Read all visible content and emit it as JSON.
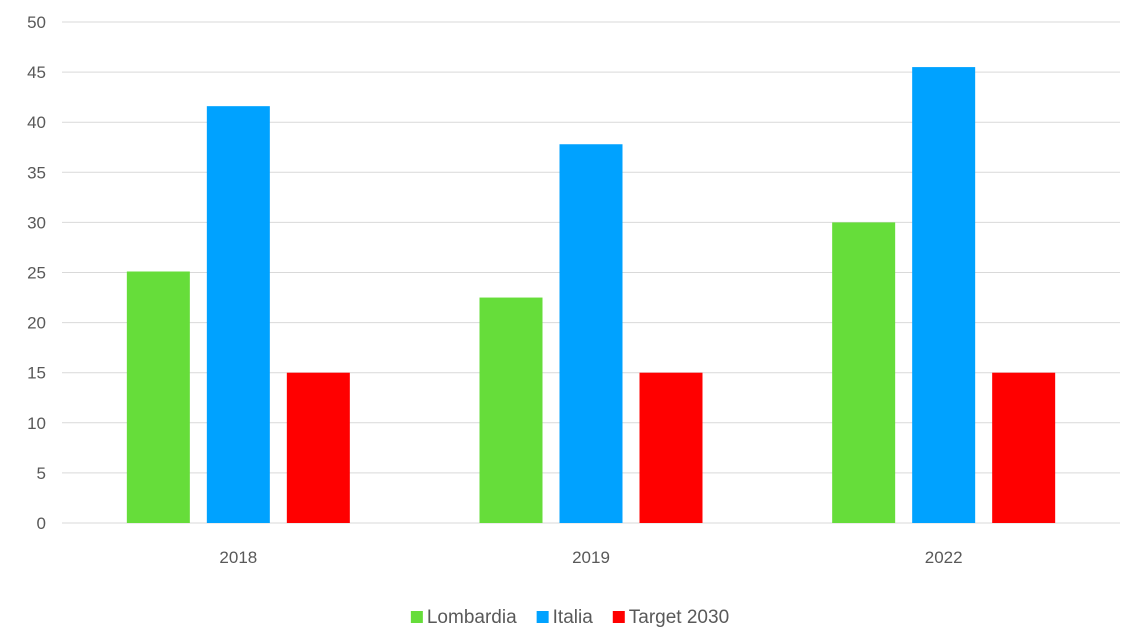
{
  "chart_data": {
    "type": "bar",
    "categories": [
      "2018",
      "2019",
      "2022"
    ],
    "series": [
      {
        "name": "Lombardia",
        "color": "#66dd3a",
        "values": [
          25.1,
          22.5,
          30.0
        ]
      },
      {
        "name": "Italia",
        "color": "#00a2ff",
        "values": [
          41.6,
          37.8,
          45.5
        ]
      },
      {
        "name": "Target 2030",
        "color": "#ff0000",
        "values": [
          15,
          15,
          15
        ]
      }
    ],
    "ylim": [
      0,
      50
    ],
    "yticks": [
      "0",
      "5",
      "10",
      "15",
      "20",
      "25",
      "30",
      "35",
      "40",
      "45",
      "50"
    ],
    "grid": true,
    "legend": "bottom-center"
  }
}
